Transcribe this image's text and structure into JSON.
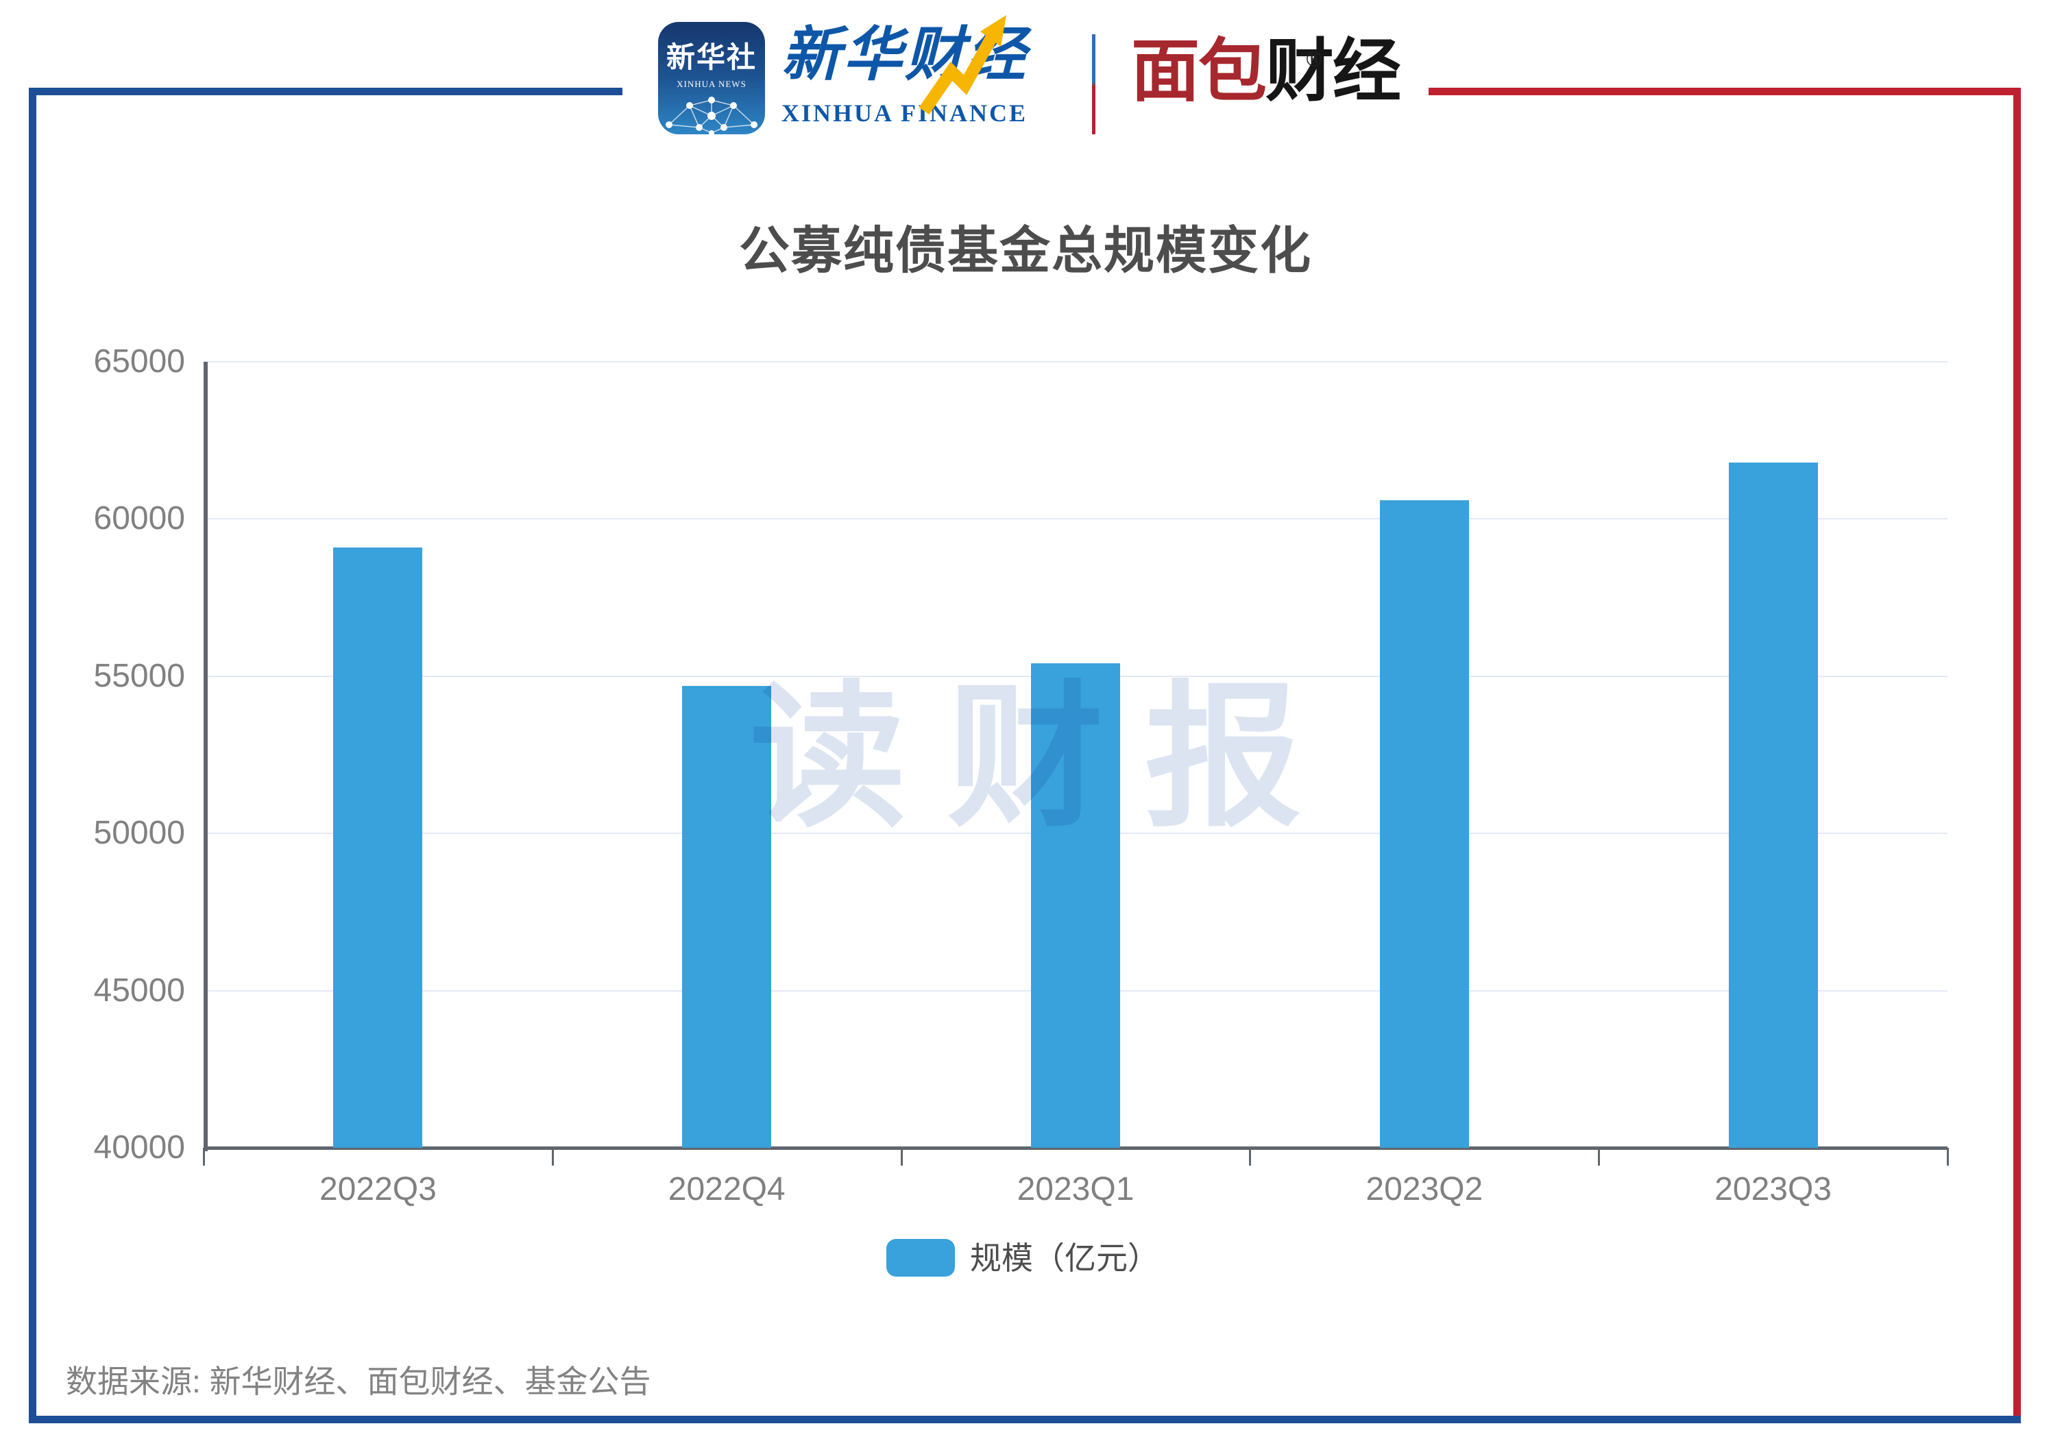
{
  "header": {
    "xinhua_news_icon": {
      "cn": "新华社",
      "en": "XINHUA NEWS"
    },
    "xinhua_finance": {
      "cn": "新华财经",
      "en": "XINHUA FINANCE"
    },
    "bread_finance": {
      "cn_red": "面包",
      "cn_black": "财经",
      "registered_mark": "®"
    }
  },
  "chart_data": {
    "type": "bar",
    "title": "公募纯债基金总规模变化",
    "categories": [
      "2022Q3",
      "2022Q4",
      "2023Q1",
      "2023Q2",
      "2023Q3"
    ],
    "series": [
      {
        "name": "规模（亿元）",
        "values": [
          59100,
          54700,
          55400,
          60600,
          61800
        ]
      }
    ],
    "xlabel": "",
    "ylabel": "",
    "ylim": [
      40000,
      65000
    ],
    "yticks": [
      40000,
      45000,
      50000,
      55000,
      60000,
      65000
    ],
    "grid": true,
    "legend_position": "bottom",
    "bar_color": "#39a1db",
    "watermark": "读财报"
  },
  "legend": {
    "label": "规模（亿元）",
    "swatch_color": "#39a1db"
  },
  "watermark": {
    "text": "读财报"
  },
  "footer": {
    "source": "数据来源: 新华财经、面包财经、基金公告"
  },
  "colors": {
    "frame_blue": "#1e4f96",
    "frame_red": "#bf202f",
    "bar": "#39a1db",
    "title_text": "#4d4d4d",
    "axis_text": "#808080",
    "gridline": "#e4e9f4",
    "axis_line": "#60666d",
    "watermark": "#dce4f1"
  }
}
